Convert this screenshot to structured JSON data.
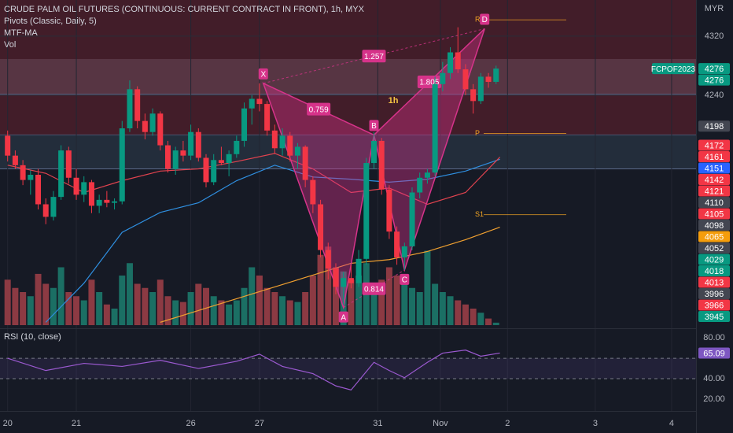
{
  "chart_data": [
    {
      "type": "candlestick",
      "title": "CRUDE PALM OIL FUTURES (CONTINUOUS: CURRENT CONTRACT IN FRONT), 1h, MYX",
      "indicators": [
        "Pivots (Classic, Daily, 5)",
        "MTF-MA",
        "Vol"
      ],
      "currency": "MYR",
      "symbol": "FCPOF2023",
      "timeframe_label": "1h",
      "up_color": "#089981",
      "down_color": "#f23645",
      "open": [
        4185,
        4158,
        4145,
        4125,
        4132,
        4092,
        4075,
        4102,
        4165,
        4128,
        4105,
        4122,
        4090,
        4098,
        4094,
        4096,
        4195,
        4248,
        4205,
        4190,
        4215,
        4172,
        4140,
        4165,
        4158,
        4190,
        4155,
        4122,
        4152,
        4148,
        4160,
        4178,
        4222,
        4235,
        4228,
        4192,
        4168,
        4185,
        4158,
        4170,
        4125,
        4092,
        4030,
        4005,
        3980,
        3992,
        3985,
        4018,
        4148,
        4178,
        4112,
        4055,
        4020,
        4035,
        4108,
        4128,
        4135,
        4255,
        4270,
        4298,
        4275,
        4248,
        4232,
        4265,
        4258
      ],
      "high": [
        4192,
        4165,
        4152,
        4138,
        4140,
        4100,
        4110,
        4172,
        4170,
        4140,
        4130,
        4125,
        4105,
        4110,
        4100,
        4205,
        4260,
        4252,
        4215,
        4222,
        4218,
        4178,
        4170,
        4178,
        4200,
        4195,
        4160,
        4160,
        4170,
        4165,
        4185,
        4230,
        4240,
        4256,
        4232,
        4200,
        4195,
        4190,
        4175,
        4172,
        4130,
        4098,
        4040,
        4012,
        4000,
        4010,
        4030,
        4155,
        4190,
        4182,
        4118,
        4062,
        4040,
        4115,
        4135,
        4140,
        4265,
        4285,
        4305,
        4332,
        4282,
        4255,
        4270,
        4270,
        4280
      ],
      "low": [
        4150,
        4140,
        4118,
        4105,
        4085,
        4065,
        4070,
        4098,
        4120,
        4098,
        4095,
        4080,
        4080,
        4088,
        4085,
        4092,
        4190,
        4195,
        4180,
        4185,
        4165,
        4135,
        4132,
        4150,
        4152,
        4150,
        4115,
        4118,
        4145,
        4130,
        4155,
        4170,
        4200,
        4218,
        4185,
        4160,
        4158,
        4150,
        4140,
        4115,
        4080,
        4020,
        3990,
        3970,
        3955,
        3978,
        3980,
        4010,
        4140,
        4105,
        4045,
        4010,
        4003,
        4030,
        4100,
        4120,
        4130,
        4245,
        4262,
        4270,
        4240,
        4215,
        4228,
        4250,
        4255
      ],
      "close": [
        4158,
        4145,
        4125,
        4132,
        4092,
        4075,
        4102,
        4165,
        4128,
        4105,
        4122,
        4090,
        4098,
        4094,
        4096,
        4195,
        4248,
        4205,
        4190,
        4215,
        4172,
        4140,
        4165,
        4158,
        4190,
        4155,
        4122,
        4152,
        4148,
        4160,
        4178,
        4222,
        4235,
        4228,
        4192,
        4168,
        4185,
        4158,
        4170,
        4125,
        4092,
        4030,
        4005,
        3980,
        3992,
        3985,
        4018,
        4148,
        4178,
        4112,
        4055,
        4020,
        4035,
        4108,
        4128,
        4135,
        4255,
        4270,
        4298,
        4275,
        4248,
        4232,
        4265,
        4258,
        4276
      ],
      "volume": {
        "up_color": "#1b6f64",
        "down_color": "#8c3a43",
        "lim": [
          0,
          100
        ],
        "values": [
          55,
          45,
          40,
          35,
          62,
          50,
          45,
          70,
          40,
          35,
          30,
          55,
          40,
          25,
          20,
          60,
          75,
          50,
          45,
          40,
          55,
          35,
          30,
          28,
          40,
          50,
          45,
          35,
          30,
          25,
          30,
          45,
          70,
          60,
          45,
          40,
          35,
          30,
          28,
          40,
          60,
          85,
          95,
          70,
          65,
          55,
          60,
          75,
          40,
          55,
          70,
          60,
          50,
          45,
          40,
          90,
          50,
          40,
          35,
          30,
          25,
          20,
          15,
          8,
          3
        ]
      },
      "moving_averages": [
        {
          "color": "#2f8fe0",
          "x": [
            5,
            10,
            15,
            20,
            25,
            30,
            35,
            40,
            45,
            50,
            55,
            60,
            64.5
          ],
          "values": [
            3932,
            3985,
            4054,
            4081,
            4094,
            4124,
            4145,
            4129,
            4126,
            4122,
            4126,
            4137,
            4153
          ]
        },
        {
          "color": "#e2434f",
          "x": [
            0,
            5,
            10,
            15,
            20,
            25,
            30,
            35,
            40,
            45,
            50,
            55,
            60,
            64.5
          ],
          "values": [
            4145,
            4134,
            4108,
            4124,
            4137,
            4140,
            4150,
            4161,
            4140,
            4108,
            4114,
            4092,
            4108,
            4156
          ]
        },
        {
          "color": "#f0a030",
          "x": [
            20,
            25,
            30,
            35,
            40,
            45,
            50,
            55,
            60,
            64.5
          ],
          "values": [
            3932,
            3948,
            3964,
            3980,
            3996,
            4012,
            4017,
            4028,
            4044,
            4061
          ]
        }
      ],
      "pivots": [
        {
          "label": "R",
          "value": 4342
        },
        {
          "label": "P",
          "value": 4188
        },
        {
          "label": "S1",
          "value": 4078
        }
      ],
      "zones": [
        {
          "low": 4186,
          "high": 4369,
          "color": "#4a1f2a"
        },
        {
          "low": 4241,
          "high": 4289,
          "color": "#5a3a48"
        },
        {
          "low": 4140,
          "high": 4186,
          "color": "#263140"
        }
      ],
      "pattern": {
        "color": "#d6338a",
        "points": [
          {
            "label": "X",
            "x": 33.5,
            "value": 4256
          },
          {
            "label": "A",
            "x": 44,
            "value": 3952
          },
          {
            "label": "B",
            "x": 48,
            "value": 4186
          },
          {
            "label": "C",
            "x": 52,
            "value": 4003
          },
          {
            "label": "D",
            "x": 62.5,
            "value": 4330
          }
        ],
        "ratios": [
          0.759,
          0.814,
          1.805,
          1.257
        ]
      },
      "price_labels": [
        {
          "value": 4276,
          "color": "#089981"
        },
        {
          "value": 4276,
          "color": "#089981"
        },
        {
          "value": 4198,
          "color": "#434651"
        },
        {
          "value": 4172,
          "color": "#f23645"
        },
        {
          "value": 4161,
          "color": "#f23645"
        },
        {
          "value": 4151,
          "color": "#2962ff"
        },
        {
          "value": 4142,
          "color": "#f23645"
        },
        {
          "value": 4121,
          "color": "#f23645"
        },
        {
          "value": 4110,
          "color": "#434651"
        },
        {
          "value": 4105,
          "color": "#f23645"
        },
        {
          "value": 4098,
          "color": "#434651"
        },
        {
          "value": 4065,
          "color": "#f59d0c"
        },
        {
          "value": 4052,
          "color": "#434651"
        },
        {
          "value": 4029,
          "color": "#089981"
        },
        {
          "value": 4018,
          "color": "#089981"
        },
        {
          "value": 4013,
          "color": "#f23645"
        },
        {
          "value": 3996,
          "color": "#434651"
        },
        {
          "value": 3966,
          "color": "#f23645"
        },
        {
          "value": 3945,
          "color": "#089981"
        }
      ],
      "xlim": [
        -1,
        90.2
      ],
      "xticks": [
        {
          "value": 0,
          "label": "20"
        },
        {
          "value": 9,
          "label": "21"
        },
        {
          "value": 24,
          "label": "26"
        },
        {
          "value": 33,
          "label": "27"
        },
        {
          "value": 48.5,
          "label": "31"
        },
        {
          "value": 56.7,
          "label": "Nov"
        },
        {
          "value": 65.5,
          "label": "2"
        },
        {
          "value": 77,
          "label": "3"
        },
        {
          "value": 87,
          "label": "4"
        }
      ],
      "ylim": [
        3926,
        4369
      ],
      "yticks": [
        4320,
        4240
      ],
      "grid": true
    },
    {
      "type": "line",
      "title": "RSI (10, close)",
      "color": "#9b59d0",
      "x": [
        0,
        5,
        10,
        15,
        20,
        25,
        30,
        33,
        36,
        40,
        43,
        45,
        48,
        50,
        52,
        55,
        57,
        60,
        62,
        64.5
      ],
      "values": [
        60,
        48,
        55,
        52,
        58,
        50,
        57,
        64,
        52,
        45,
        33,
        29,
        56,
        48,
        41,
        56,
        65,
        68,
        62,
        65.09
      ],
      "bands": [
        60,
        40
      ],
      "xlim": [
        -1,
        90.2
      ],
      "ylim": [
        10,
        87
      ],
      "yticks": [
        {
          "value": 80,
          "label": "80.00"
        },
        {
          "value": 40,
          "label": "40.00"
        },
        {
          "value": 20,
          "label": "20.00"
        }
      ]
    }
  ]
}
